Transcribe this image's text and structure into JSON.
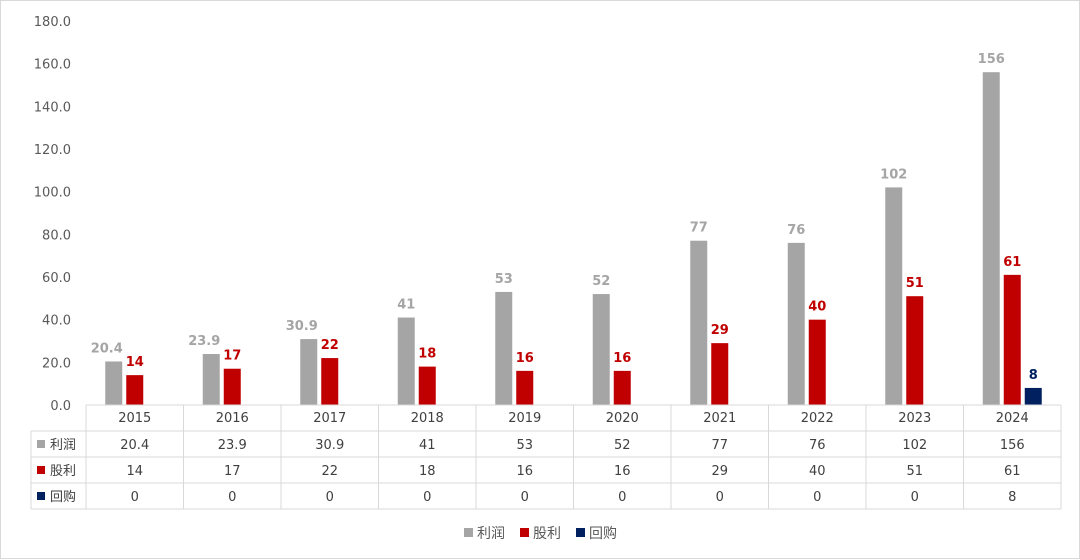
{
  "chart_data": {
    "type": "bar",
    "title": "",
    "xlabel": "",
    "ylabel": "",
    "categories": [
      "2015",
      "2016",
      "2017",
      "2018",
      "2019",
      "2020",
      "2021",
      "2022",
      "2023",
      "2024"
    ],
    "ylim": [
      0,
      180
    ],
    "yticks": [
      "0.0",
      "20.0",
      "40.0",
      "60.0",
      "80.0",
      "100.0",
      "120.0",
      "140.0",
      "160.0",
      "180.0"
    ],
    "grid": false,
    "legend_position": "bottom",
    "data_table": true,
    "series": [
      {
        "name": "利润",
        "color": "#a5a5a5",
        "values": [
          20.4,
          23.9,
          30.9,
          41,
          53,
          52,
          77,
          76,
          102,
          156
        ],
        "labels": [
          "20.4",
          "23.9",
          "30.9",
          "41",
          "53",
          "52",
          "77",
          "76",
          "102",
          "156"
        ]
      },
      {
        "name": "股利",
        "color": "#c00000",
        "values": [
          14,
          17,
          22,
          18,
          16,
          16,
          29,
          40,
          51,
          61
        ],
        "labels": [
          "14",
          "17",
          "22",
          "18",
          "16",
          "16",
          "29",
          "40",
          "51",
          "61"
        ]
      },
      {
        "name": "回购",
        "color": "#002060",
        "values": [
          0,
          0,
          0,
          0,
          0,
          0,
          0,
          0,
          0,
          8
        ],
        "labels": [
          "0",
          "0",
          "0",
          "0",
          "0",
          "0",
          "0",
          "0",
          "0",
          "8"
        ]
      }
    ]
  }
}
